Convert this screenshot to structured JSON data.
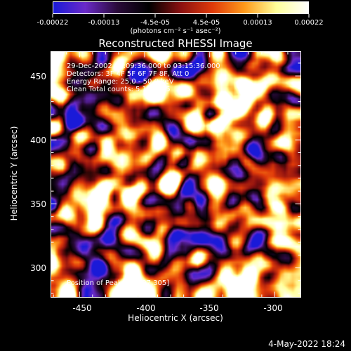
{
  "colorbar": {
    "tick_labels": [
      "-0.00022",
      "-0.00013",
      "-4.5e-05",
      "4.5e-05",
      "0.00013",
      "0.00022"
    ],
    "units": "(photons cm⁻² s⁻¹ asec⁻²)",
    "colors": [
      "#1a1ad8",
      "#6a2ac8",
      "#2a0a3a",
      "#000000",
      "#8a1010",
      "#e03a0a",
      "#ff9a1a",
      "#ffff9a",
      "#ffffff"
    ]
  },
  "chart_data": {
    "type": "heatmap",
    "title": "Reconstructed RHESSI Image",
    "xlabel": "Heliocentric X (arcsec)",
    "ylabel": "Heliocentric Y (arcsec)",
    "xlim": [
      -472,
      -280
    ],
    "ylim": [
      277,
      469
    ],
    "x_ticks": [
      "-450",
      "-400",
      "-350",
      "-300"
    ],
    "y_ticks": [
      "300",
      "350",
      "400",
      "450"
    ],
    "x_tick_values": [
      -450,
      -400,
      -350,
      -300
    ],
    "y_tick_values": [
      300,
      350,
      400,
      450
    ],
    "value_range": [
      -0.00022,
      0.00022
    ],
    "annotations": [
      "29-Dec-2002 03:09:36.000 to 03:15:36.000",
      "Detectors: 3F 4F 5F 6F 7F 8F, Att 0",
      "Energy Range: 25.0 - 50.0 keV",
      "Clean     Total counts: 5.16E+05"
    ],
    "peak_label": "Position of Peak = [-297,305]",
    "peak_position": [
      -297,
      305
    ]
  },
  "timestamp": "4-May-2022 18:24"
}
